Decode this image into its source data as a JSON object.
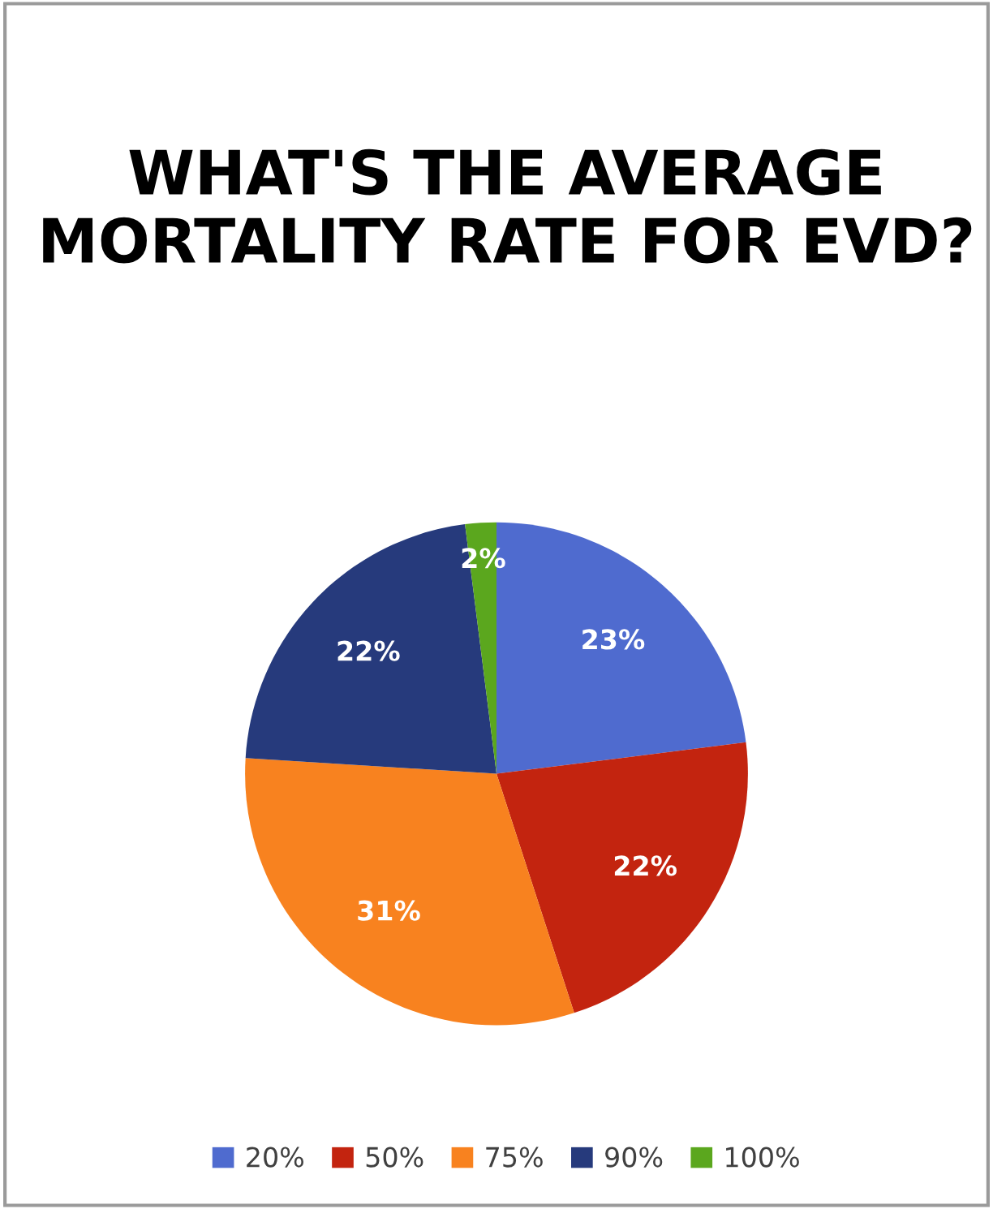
{
  "chart_data": {
    "type": "pie",
    "title": "WHAT'S THE AVERAGE MORTALITY RATE FOR EVD?",
    "categories": [
      "20%",
      "50%",
      "75%",
      "90%",
      "100%"
    ],
    "values": [
      23,
      22,
      31,
      22,
      2
    ],
    "colors": [
      "#4f6bcf",
      "#c3240f",
      "#f8821f",
      "#263a7c",
      "#5ba71e"
    ],
    "value_labels": [
      "23%",
      "22%",
      "31%",
      "22%",
      "2%"
    ],
    "legend": "bottom"
  }
}
